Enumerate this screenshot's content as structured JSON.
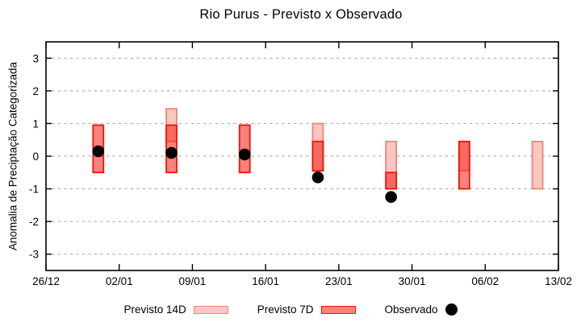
{
  "colors": {
    "background": "#ffffff",
    "frame": "#000000",
    "grid": "#9e9e9e",
    "previsto14_fill": "#f9c7c0",
    "previsto14_stroke": "#ef8378",
    "previsto7_fill": "rgba(243,20,8,0.53)",
    "previsto7_fill_legend": "#f9827c",
    "previsto7_stroke": "#ee1409",
    "observado": "#000000"
  },
  "chart_data": {
    "type": "bar",
    "title": "Rio Purus - Previsto x Observado",
    "xlabel": "",
    "ylabel": "Anomalia de Preciptação Categorizada",
    "x_tick_labels": [
      "26/12",
      "02/01",
      "09/01",
      "16/01",
      "23/01",
      "30/01",
      "06/02",
      "13/02"
    ],
    "x_tick_days": [
      0,
      7,
      14,
      21,
      28,
      35,
      42,
      49
    ],
    "x_range_days": [
      0,
      49
    ],
    "y_ticks": [
      3,
      2,
      1,
      0,
      -1,
      -2,
      -3
    ],
    "ylim": [
      -3.5,
      3.5
    ],
    "grid": "horizontal-dashed",
    "legend_position": "bottom",
    "bar_width_days": 1,
    "legend": [
      {
        "label": "Previsto 14D",
        "marker": "box-light"
      },
      {
        "label": "Previsto 7D",
        "marker": "box-dark"
      },
      {
        "label": "Observado",
        "marker": "dot"
      }
    ],
    "groups": [
      {
        "day": 5,
        "previsto14": null,
        "previsto7": [
          -0.5,
          0.95
        ],
        "observado": 0.15
      },
      {
        "day": 12,
        "previsto14": [
          0.45,
          1.45
        ],
        "previsto7": [
          -0.5,
          0.95
        ],
        "observado": 0.1
      },
      {
        "day": 19,
        "previsto14": null,
        "previsto7": [
          -0.5,
          0.95
        ],
        "observado": 0.05
      },
      {
        "day": 26,
        "previsto14": [
          -0.45,
          1.0
        ],
        "previsto7": [
          -0.45,
          0.45
        ],
        "observado": -0.65
      },
      {
        "day": 33,
        "previsto14": [
          -1.0,
          0.45
        ],
        "previsto7": [
          -1.0,
          -0.5
        ],
        "observado": -1.25
      },
      {
        "day": 40,
        "previsto14": [
          -0.45,
          0.45
        ],
        "previsto7": [
          -1.0,
          0.45
        ],
        "observado": null
      },
      {
        "day": 47,
        "previsto14": [
          -1.0,
          0.45
        ],
        "previsto7": null,
        "observado": null
      }
    ]
  }
}
